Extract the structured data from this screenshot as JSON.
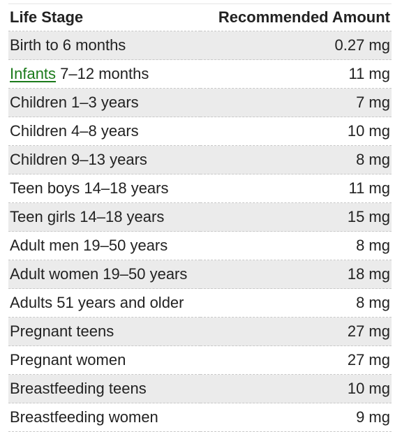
{
  "table": {
    "headers": {
      "stage": "Life Stage",
      "amount": "Recommended Amount"
    },
    "rows": [
      {
        "stage": "Birth to 6 months",
        "amount": "0.27 mg"
      },
      {
        "stage_link": "Infants",
        "stage": " 7–12 months",
        "amount": "11 mg"
      },
      {
        "stage": "Children 1–3 years",
        "amount": "7 mg"
      },
      {
        "stage": "Children 4–8 years",
        "amount": "10 mg"
      },
      {
        "stage": "Children 9–13 years",
        "amount": "8 mg"
      },
      {
        "stage": "Teen boys 14–18 years",
        "amount": "11 mg"
      },
      {
        "stage": "Teen girls 14–18 years",
        "amount": "15 mg"
      },
      {
        "stage": "Adult men 19–50 years",
        "amount": "8 mg"
      },
      {
        "stage": "Adult women 19–50 years",
        "amount": "18 mg"
      },
      {
        "stage": "Adults 51 years and older",
        "amount": "8 mg"
      },
      {
        "stage": "Pregnant teens",
        "amount": "27 mg"
      },
      {
        "stage": "Pregnant women",
        "amount": "27 mg"
      },
      {
        "stage": "Breastfeeding teens",
        "amount": "10 mg"
      },
      {
        "stage": "Breastfeeding women",
        "amount": "9 mg"
      }
    ]
  },
  "colors": {
    "link": "#1b7a1b",
    "stripe": "#ebebeb",
    "text": "#222222"
  }
}
